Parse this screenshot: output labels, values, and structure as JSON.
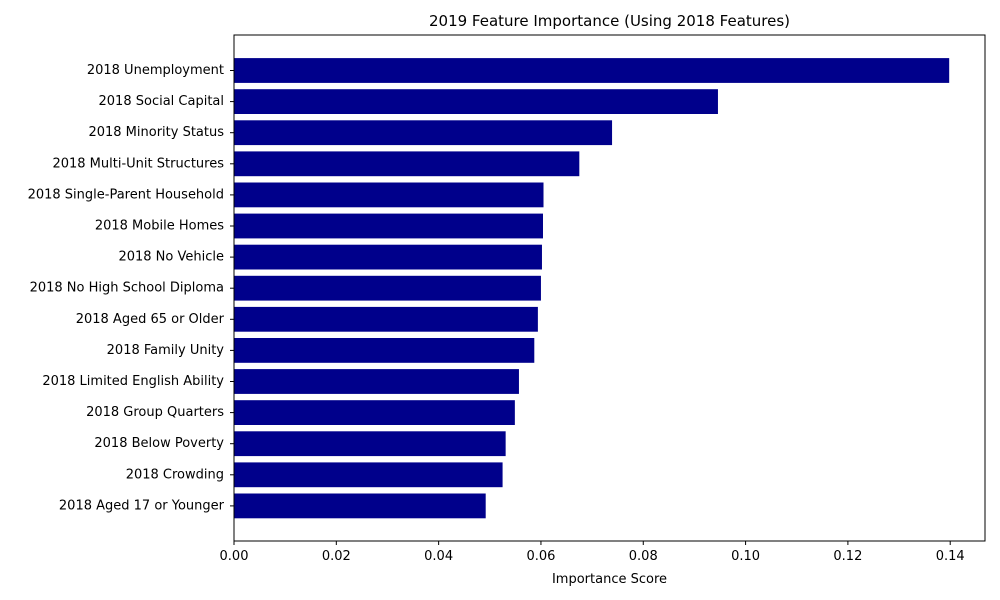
{
  "chart_data": {
    "type": "bar",
    "orientation": "horizontal",
    "title": "2019 Feature Importance (Using 2018 Features)",
    "xlabel": "Importance Score",
    "ylabel": "",
    "xlim": [
      0,
      0.1468
    ],
    "xticks": [
      0.0,
      0.02,
      0.04,
      0.06,
      0.08,
      0.1,
      0.12,
      0.14
    ],
    "xtick_labels": [
      "0.00",
      "0.02",
      "0.04",
      "0.06",
      "0.08",
      "0.10",
      "0.12",
      "0.14"
    ],
    "grid": false,
    "bar_color": "#00008b",
    "categories": [
      "2018 Unemployment",
      "2018 Social Capital",
      "2018 Minority Status",
      "2018 Multi-Unit Structures",
      "2018 Single-Parent Household",
      "2018 Mobile Homes",
      "2018 No Vehicle",
      "2018 No High School Diploma",
      "2018 Aged 65 or Older",
      "2018 Family Unity",
      "2018 Limited English Ability",
      "2018 Group Quarters",
      "2018 Below Poverty",
      "2018 Crowding",
      "2018 Aged 17 or Younger"
    ],
    "values": [
      0.1398,
      0.0946,
      0.0739,
      0.0675,
      0.0605,
      0.0604,
      0.0602,
      0.06,
      0.0594,
      0.0587,
      0.0557,
      0.0549,
      0.0531,
      0.0525,
      0.0492
    ]
  }
}
